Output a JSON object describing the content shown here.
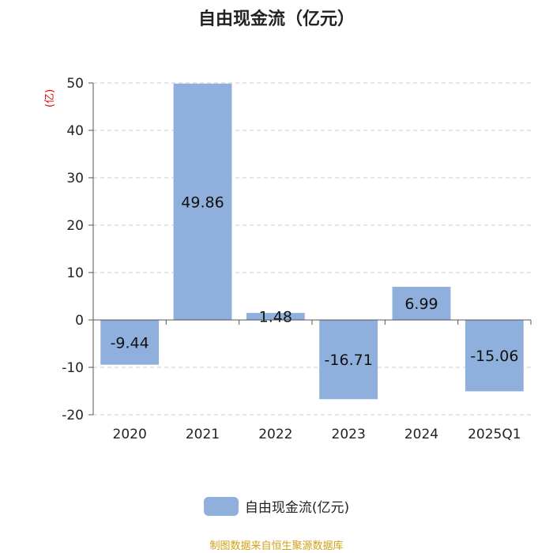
{
  "chart_data": {
    "type": "bar",
    "title": "自由现金流（亿元）",
    "ylabel": "(亿)",
    "xlabel": "",
    "categories": [
      "2020",
      "2021",
      "2022",
      "2023",
      "2024",
      "2025Q1"
    ],
    "series": [
      {
        "name": "自由现金流(亿元)",
        "values": [
          -9.44,
          49.86,
          1.48,
          -16.71,
          6.99,
          -15.06
        ]
      }
    ],
    "ylim": [
      -20,
      50
    ],
    "yticks": [
      "50",
      "40",
      "30",
      "20",
      "10",
      "0",
      "-10",
      "-20"
    ],
    "grid": true,
    "legend_position": "bottom-center",
    "bar_color": "#8fb0dc"
  },
  "source": "制图数据来自恒生聚源数据库"
}
